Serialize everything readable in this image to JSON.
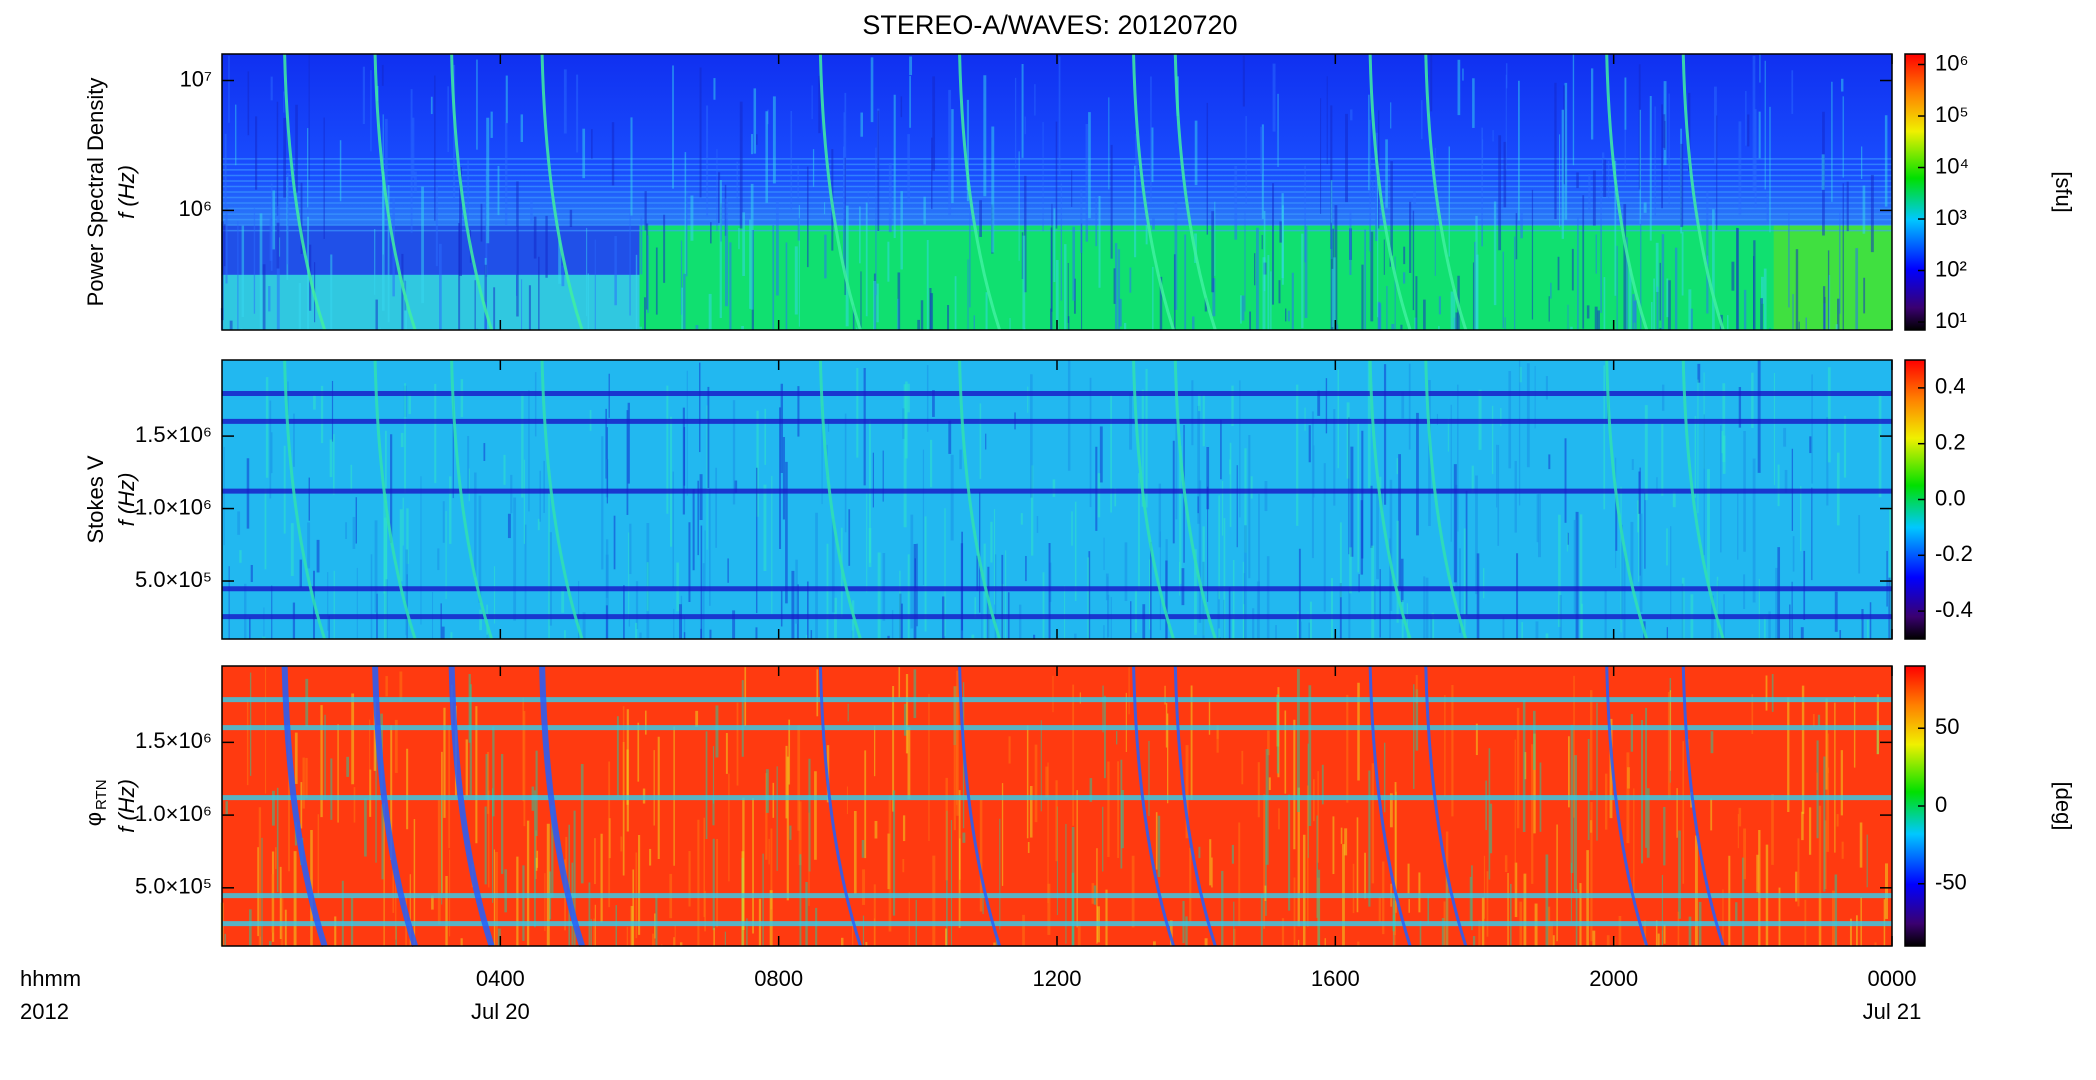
{
  "chart_data": [
    {
      "type": "spectrogram",
      "title": "STEREO-A/WAVES: 20120720",
      "ylabel": "Power Spectral Density",
      "yunit": "f (Hz)",
      "log": true,
      "ylim": [
        120000,
        16000000
      ],
      "yticks": [
        {
          "value": 1000000,
          "label": "10⁶"
        },
        {
          "value": 10000000,
          "label": "10⁷"
        }
      ],
      "clim": [
        7,
        1600000
      ],
      "clog": true,
      "cticks": [
        {
          "value": 10,
          "label": "10¹"
        },
        {
          "value": 100,
          "label": "10²"
        },
        {
          "value": 1000,
          "label": "10³"
        },
        {
          "value": 10000,
          "label": "10⁴"
        },
        {
          "value": 100000,
          "label": "10⁵"
        },
        {
          "value": 1000000,
          "label": "10⁶"
        }
      ],
      "clabel": "[sfu]"
    },
    {
      "type": "spectrogram",
      "ylabel": "Stokes V",
      "yunit": "f (Hz)",
      "log": false,
      "ylim": [
        100000,
        2025000
      ],
      "yticks": [
        {
          "value": 500000,
          "label": "5.0×10⁵"
        },
        {
          "value": 1000000,
          "label": "1.0×10⁶"
        },
        {
          "value": 1500000,
          "label": "1.5×10⁶"
        }
      ],
      "clim": [
        -0.5,
        0.5
      ],
      "clog": false,
      "cticks": [
        -0.4,
        -0.2,
        {
          "value": 0,
          "label": "0.0"
        },
        0.2,
        0.4
      ]
    },
    {
      "type": "spectrogram",
      "ylabel": "φ",
      "ylabel_subscript": "RTN",
      "yunit": "f (Hz)",
      "log": false,
      "ylim": [
        100000,
        2025000
      ],
      "yticks": [
        {
          "value": 500000,
          "label": "5.0×10⁵"
        },
        {
          "value": 1000000,
          "label": "1.0×10⁶"
        },
        {
          "value": 1500000,
          "label": "1.5×10⁶"
        }
      ],
      "clim": [
        -90,
        90
      ],
      "clog": false,
      "cticks": [
        -50,
        0,
        50
      ],
      "clabel": "[deg]",
      "xlabel": "hhmm",
      "year": "2012",
      "xlim": [
        0,
        24
      ],
      "xticks": [
        {
          "value": 4,
          "label": "0400"
        },
        {
          "value": 8,
          "label": "0800"
        },
        {
          "value": 12,
          "label": "1200"
        },
        {
          "value": 16,
          "label": "1600"
        },
        {
          "value": 20,
          "label": "2000"
        },
        {
          "value": 24,
          "label": "0000"
        }
      ],
      "xtick_dates": [
        {
          "value": 4,
          "label": "Jul 20"
        },
        {
          "value": 24,
          "label": "Jul 21"
        }
      ]
    }
  ]
}
